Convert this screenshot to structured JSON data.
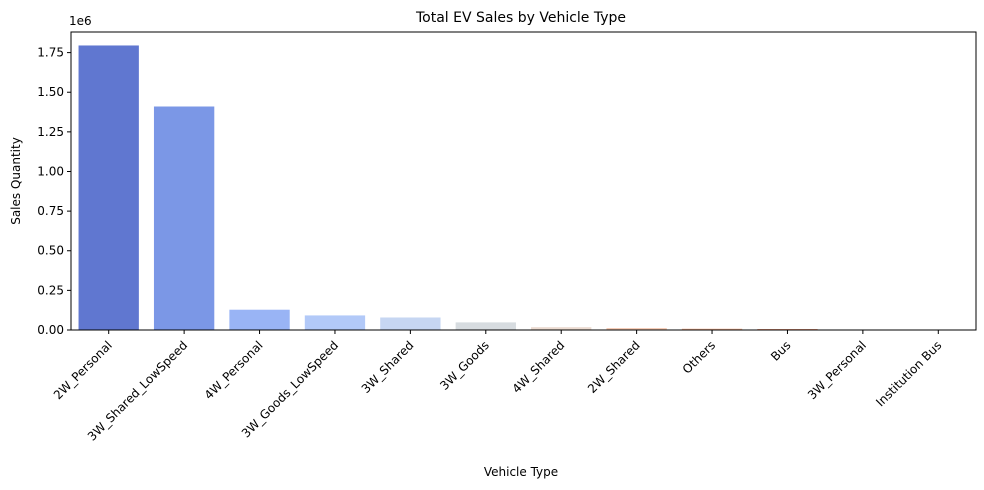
{
  "chart_data": {
    "type": "bar",
    "title": "Total EV Sales by Vehicle Type",
    "xlabel": "Vehicle Type",
    "ylabel": "Sales Quantity",
    "y_offset_label": "1e6",
    "ylim": [
      0,
      1880000
    ],
    "yticks": [
      0,
      250000,
      500000,
      750000,
      1000000,
      1250000,
      1500000,
      1750000
    ],
    "ytick_labels": [
      "0.00",
      "0.25",
      "0.50",
      "0.75",
      "1.00",
      "1.25",
      "1.50",
      "1.75"
    ],
    "grid": false,
    "categories": [
      "2W_Personal",
      "3W_Shared_LowSpeed",
      "4W_Personal",
      "3W_Goods_LowSpeed",
      "3W_Shared",
      "3W_Goods",
      "4W_Shared",
      "2W_Shared",
      "Others",
      "Bus",
      "3W_Personal",
      "Institution Bus"
    ],
    "values": [
      1795000,
      1410000,
      128000,
      92000,
      79000,
      48000,
      18000,
      12000,
      8000,
      6000,
      2000,
      1000
    ],
    "colors": [
      "#6077d0",
      "#7b97e6",
      "#99b4f5",
      "#b2c9f8",
      "#c6d6f2",
      "#d7dce0",
      "#ecdbd1",
      "#f5c8b0",
      "#f5b292",
      "#ee9677",
      "#e07a5e",
      "#cc5b48"
    ]
  }
}
